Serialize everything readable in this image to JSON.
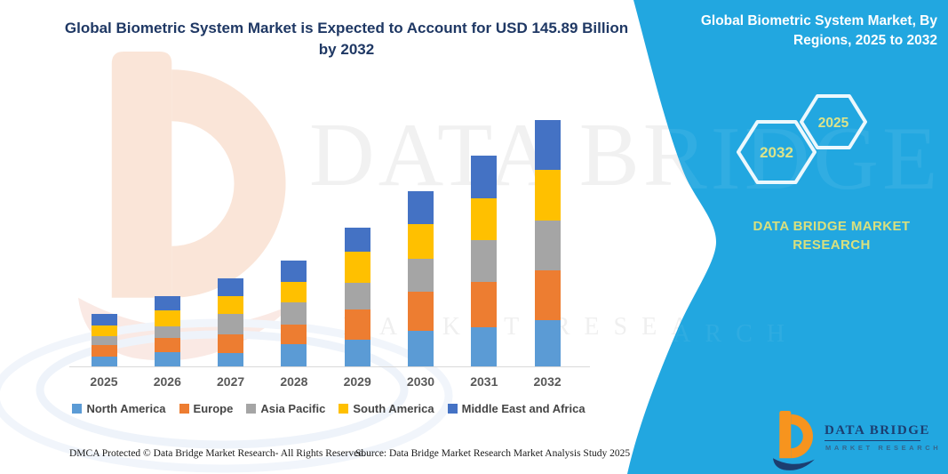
{
  "header": {
    "title": "Global Biometric System Market is Expected to Account for USD 145.89 Billion by 2032"
  },
  "side_panel": {
    "heading": "Global Biometric System Market, By Regions, 2025 to 2032",
    "hexagon_labels": [
      "2032",
      "2025"
    ],
    "brand_name": "DATA BRIDGE MARKET RESEARCH",
    "panel_color": "#22a7e0",
    "hexagon_text_color": "#dce38a"
  },
  "chart_data": {
    "type": "bar",
    "stacked": true,
    "title": "Global Biometric System Market, By Regions, 2025 to 2032",
    "unit": "USD Billion",
    "xlabel": "",
    "ylabel": "",
    "ylim": [
      0,
      150
    ],
    "grid": false,
    "legend_position": "bottom",
    "categories": [
      "2025",
      "2026",
      "2027",
      "2028",
      "2029",
      "2030",
      "2031",
      "2032"
    ],
    "series": [
      {
        "name": "North America",
        "color": "#5B9BD5",
        "values": [
          6.5,
          8.9,
          8.4,
          13.6,
          16.3,
          21.5,
          23.6,
          28.1
        ]
      },
      {
        "name": "Europe",
        "color": "#ED7D31",
        "values": [
          6.6,
          8.4,
          11.0,
          11.5,
          17.8,
          23.1,
          26.8,
          29.2
        ]
      },
      {
        "name": "Asia Pacific",
        "color": "#A5A5A5",
        "values": [
          5.4,
          6.8,
          12.1,
          13.1,
          15.7,
          19.4,
          24.7,
          29.2
        ]
      },
      {
        "name": "South America",
        "color": "#FFC000",
        "values": [
          6.4,
          9.4,
          10.5,
          12.1,
          18.4,
          20.5,
          24.7,
          30.2
        ]
      },
      {
        "name": "Middle East and Africa",
        "color": "#4472C4",
        "values": [
          6.6,
          8.4,
          10.5,
          12.6,
          14.2,
          19.4,
          25.2,
          29.19
        ]
      }
    ],
    "totals": [
      31.5,
      41.9,
      52.5,
      62.9,
      82.4,
      103.9,
      125.0,
      145.89
    ],
    "annotation": "USD 145.89 Billion by 2032"
  },
  "watermark": {
    "line1": "DATA BRIDGE",
    "line2": "MARKET RESEARCH"
  },
  "footer": {
    "dmca": "DMCA Protected © Data Bridge Market Research-  All Rights Reserved.",
    "source": "Source: Data Bridge Market Research  Market Analysis Study 2025"
  },
  "logo": {
    "name": "DATA BRIDGE",
    "tagline": "MARKET RESEARCH"
  }
}
